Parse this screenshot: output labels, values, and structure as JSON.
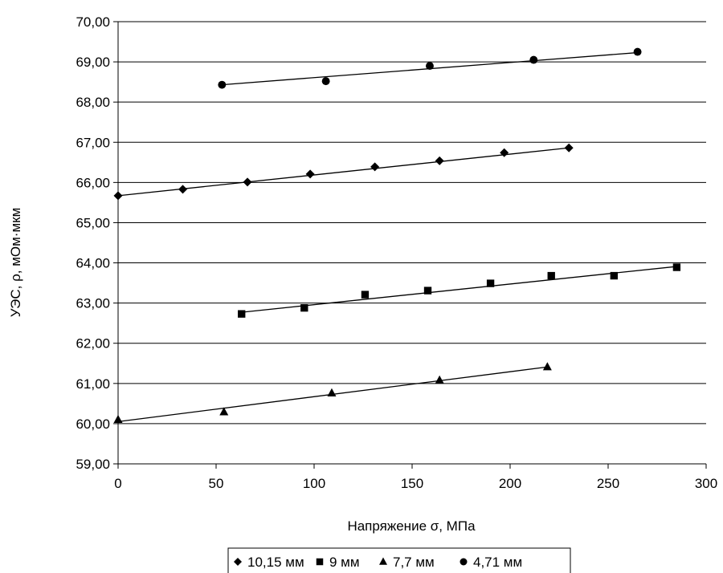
{
  "chart_data": {
    "type": "scatter",
    "title": "",
    "xlabel": "Напряжение σ, МПа",
    "ylabel": "УЭС, ρ, мОм·мкм",
    "xlim": [
      0,
      300
    ],
    "ylim": [
      59,
      70
    ],
    "x_ticks": [
      0,
      50,
      100,
      150,
      200,
      250,
      300
    ],
    "x_tick_labels": [
      "0",
      "50",
      "100",
      "150",
      "200",
      "250",
      "300"
    ],
    "y_ticks": [
      59,
      60,
      61,
      62,
      63,
      64,
      65,
      66,
      67,
      68,
      69,
      70
    ],
    "y_tick_labels": [
      "59,00",
      "60,00",
      "61,00",
      "62,00",
      "63,00",
      "64,00",
      "65,00",
      "66,00",
      "67,00",
      "68,00",
      "69,00",
      "70,00"
    ],
    "grid": "horizontal",
    "legend_position": "bottom",
    "series": [
      {
        "name": "10,15 мм",
        "marker": "diamond",
        "color": "#000000",
        "points": [
          [
            0,
            65.67
          ],
          [
            33,
            65.83
          ],
          [
            66,
            66.01
          ],
          [
            98,
            66.21
          ],
          [
            131,
            66.39
          ],
          [
            164,
            66.54
          ],
          [
            197,
            66.74
          ],
          [
            230,
            66.86
          ]
        ],
        "trendline": [
          [
            0,
            65.67
          ],
          [
            230,
            66.86
          ]
        ]
      },
      {
        "name": "9 мм",
        "marker": "square",
        "color": "#000000",
        "points": [
          [
            63,
            62.73
          ],
          [
            95,
            62.88
          ],
          [
            126,
            63.21
          ],
          [
            158,
            63.31
          ],
          [
            190,
            63.49
          ],
          [
            221,
            63.68
          ],
          [
            253,
            63.68
          ],
          [
            285,
            63.89
          ]
        ],
        "trendline": [
          [
            63,
            62.77
          ],
          [
            285,
            63.91
          ]
        ]
      },
      {
        "name": "7,7 мм",
        "marker": "triangle",
        "color": "#000000",
        "points": [
          [
            0,
            60.1
          ],
          [
            54,
            60.29
          ],
          [
            109,
            60.76
          ],
          [
            164,
            61.08
          ],
          [
            219,
            61.41
          ]
        ],
        "trendline": [
          [
            0,
            60.05
          ],
          [
            219,
            61.41
          ]
        ]
      },
      {
        "name": "4,71 мм",
        "marker": "circle",
        "color": "#000000",
        "points": [
          [
            53,
            68.43
          ],
          [
            106,
            68.52
          ],
          [
            159,
            68.9
          ],
          [
            212,
            69.05
          ],
          [
            265,
            69.25
          ]
        ],
        "trendline": [
          [
            53,
            68.43
          ],
          [
            265,
            69.23
          ]
        ]
      }
    ]
  }
}
